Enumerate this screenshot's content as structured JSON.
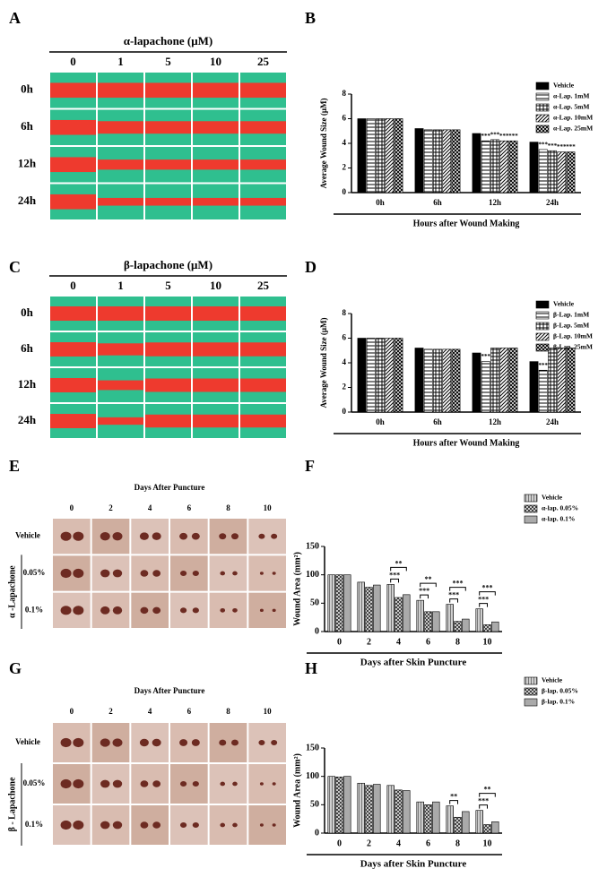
{
  "panel_letters": [
    "A",
    "B",
    "C",
    "D",
    "E",
    "F",
    "G",
    "H"
  ],
  "image_panels": [
    {
      "title": "α-lapachone (μM)",
      "columns": [
        "0",
        "1",
        "5",
        "10",
        "25"
      ],
      "rows": [
        "0h",
        "6h",
        "12h",
        "24h"
      ]
    },
    {
      "title": "β-lapachone (μM)",
      "columns": [
        "0",
        "1",
        "5",
        "10",
        "25"
      ],
      "rows": [
        "0h",
        "6h",
        "12h",
        "24h"
      ]
    },
    {
      "title": "Days  After  Puncture",
      "columns": [
        "0",
        "2",
        "4",
        "6",
        "8",
        "10"
      ],
      "rows": [
        "Vehicle",
        "0.05%",
        "0.1%"
      ],
      "side_label": "α -Lapachone"
    },
    {
      "title": "Days  After  Puncture",
      "columns": [
        "0",
        "2",
        "4",
        "6",
        "8",
        "10"
      ],
      "rows": [
        "Vehicle",
        "0.05%",
        "0.1%"
      ],
      "side_label": "β - Lapachone"
    }
  ],
  "chart_data": [
    {
      "type": "bar",
      "y_label": "Average Wound Size (μM)",
      "x_label": "Hours after Wound Making",
      "categories": [
        "0h",
        "6h",
        "12h",
        "24h"
      ],
      "ylim": [
        0,
        8
      ],
      "yticks": [
        0,
        2,
        4,
        6,
        8
      ],
      "brackets": false,
      "series": [
        {
          "name": "Vehicle",
          "color": "#000000",
          "pattern": "solid",
          "values": [
            6,
            5.2,
            4.8,
            4.1
          ]
        },
        {
          "name": "α-Lap. 1mM",
          "color": "#000000",
          "pattern": "horizontal",
          "values": [
            6,
            5.1,
            4.2,
            3.5
          ],
          "stars": [
            null,
            null,
            "***",
            "***"
          ]
        },
        {
          "name": "α-Lap. 5mM",
          "color": "#000000",
          "pattern": "dots",
          "values": [
            6,
            5.1,
            4.3,
            3.4
          ],
          "stars": [
            null,
            null,
            "***",
            "***"
          ]
        },
        {
          "name": "α-Lap. 10mM",
          "color": "#000000",
          "pattern": "diagonal",
          "values": [
            6,
            5.1,
            4.2,
            3.3
          ],
          "stars": [
            null,
            null,
            "***",
            "***"
          ]
        },
        {
          "name": "α-Lap. 25mM",
          "color": "#000000",
          "pattern": "crosshatch",
          "values": [
            6,
            5.1,
            4.2,
            3.3
          ],
          "stars": [
            null,
            null,
            "***",
            "***"
          ]
        }
      ]
    },
    {
      "type": "bar",
      "y_label": "Average Wound Size (μM)",
      "x_label": "Hours after Wound Making",
      "categories": [
        "0h",
        "6h",
        "12h",
        "24h"
      ],
      "ylim": [
        0,
        8
      ],
      "yticks": [
        0,
        2,
        4,
        6,
        8
      ],
      "brackets": false,
      "series": [
        {
          "name": "Vehicle",
          "color": "#000000",
          "pattern": "solid",
          "values": [
            6,
            5.2,
            4.8,
            4.1
          ]
        },
        {
          "name": "β-Lap. 1mM",
          "color": "#000000",
          "pattern": "horizontal",
          "values": [
            6,
            5.1,
            4.1,
            3.4
          ],
          "stars": [
            null,
            null,
            "***",
            "***"
          ]
        },
        {
          "name": "β-Lap. 5mM",
          "color": "#000000",
          "pattern": "dots",
          "values": [
            6,
            5.1,
            5.2,
            5.2
          ]
        },
        {
          "name": "β-Lap. 10mM",
          "color": "#000000",
          "pattern": "diagonal",
          "values": [
            6,
            5.1,
            5.2,
            5.2
          ]
        },
        {
          "name": "β-Lap. 25mM",
          "color": "#000000",
          "pattern": "crosshatch",
          "values": [
            6,
            5.1,
            5.2,
            5.2
          ]
        }
      ]
    },
    {
      "type": "bar",
      "y_label": "Wound Area (mm²)",
      "x_label": "Days after Skin Puncture",
      "categories": [
        "0",
        "2",
        "4",
        "6",
        "8",
        "10"
      ],
      "ylim": [
        0,
        150
      ],
      "yticks": [
        0,
        50,
        100,
        150
      ],
      "brackets": true,
      "series": [
        {
          "name": "Vehicle",
          "color": "#777777",
          "pattern": "vertical",
          "values": [
            100,
            87,
            83,
            55,
            48,
            40
          ]
        },
        {
          "name": "α-lap. 0.05%",
          "color": "#333333",
          "pattern": "crosshatch",
          "values": [
            100,
            78,
            60,
            35,
            18,
            12
          ],
          "stars": [
            null,
            null,
            "***",
            "***",
            "***",
            "***"
          ]
        },
        {
          "name": "α-lap. 0.1%",
          "color": "#aaaaaa",
          "pattern": "solid",
          "values": [
            100,
            82,
            65,
            35,
            22,
            17
          ],
          "stars": [
            null,
            null,
            "**",
            "**",
            "***",
            "***"
          ]
        }
      ]
    },
    {
      "type": "bar",
      "y_label": "Wound Area (mm²)",
      "x_label": "Days after Skin Puncture",
      "categories": [
        "0",
        "2",
        "4",
        "6",
        "8",
        "10"
      ],
      "ylim": [
        0,
        150
      ],
      "yticks": [
        0,
        50,
        100,
        150
      ],
      "brackets": true,
      "series": [
        {
          "name": "Vehicle",
          "color": "#777777",
          "pattern": "vertical",
          "values": [
            100,
            88,
            84,
            55,
            48,
            40
          ]
        },
        {
          "name": "β-lap. 0.05%",
          "color": "#333333",
          "pattern": "crosshatch",
          "values": [
            99,
            84,
            76,
            50,
            28,
            15
          ],
          "stars": [
            null,
            null,
            null,
            null,
            "**",
            "***"
          ]
        },
        {
          "name": "β-lap. 0.1%",
          "color": "#aaaaaa",
          "pattern": "solid",
          "values": [
            100,
            86,
            75,
            55,
            38,
            20
          ],
          "stars": [
            null,
            null,
            null,
            null,
            null,
            "**"
          ]
        }
      ]
    }
  ]
}
